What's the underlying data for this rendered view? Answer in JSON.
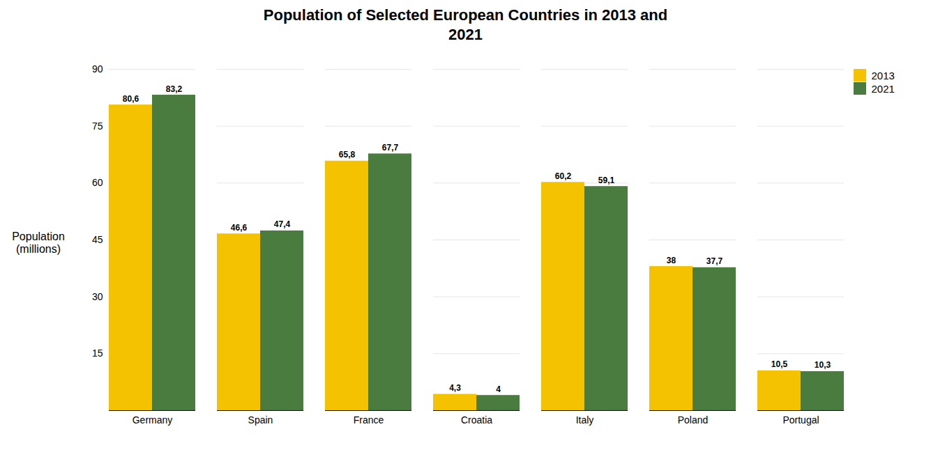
{
  "chart_data": {
    "type": "bar",
    "title": "Population of Selected European Countries in 2013 and\n2021",
    "ylabel": "Population\n(millions)",
    "categories": [
      "Germany",
      "Spain",
      "France",
      "Croatia",
      "Italy",
      "Poland",
      "Portugal"
    ],
    "series": [
      {
        "name": "2013",
        "color": "#F5C200",
        "values": [
          80.6,
          46.6,
          65.8,
          4.3,
          60.2,
          38,
          10.5
        ],
        "value_labels": [
          "80,6",
          "46,6",
          "65,8",
          "4,3",
          "60,2",
          "38",
          "10,5"
        ]
      },
      {
        "name": "2021",
        "color": "#4A7C3F",
        "values": [
          83.2,
          47.4,
          67.7,
          4,
          59.1,
          37.7,
          10.3
        ],
        "value_labels": [
          "83,2",
          "47,4",
          "67,7",
          "4",
          "59,1",
          "37,7",
          "10,3"
        ]
      }
    ],
    "ylim": [
      0,
      90
    ],
    "yticks": [
      15,
      30,
      45,
      60,
      75,
      90
    ],
    "grid": true,
    "legend": "upper right",
    "data_labels": true
  }
}
